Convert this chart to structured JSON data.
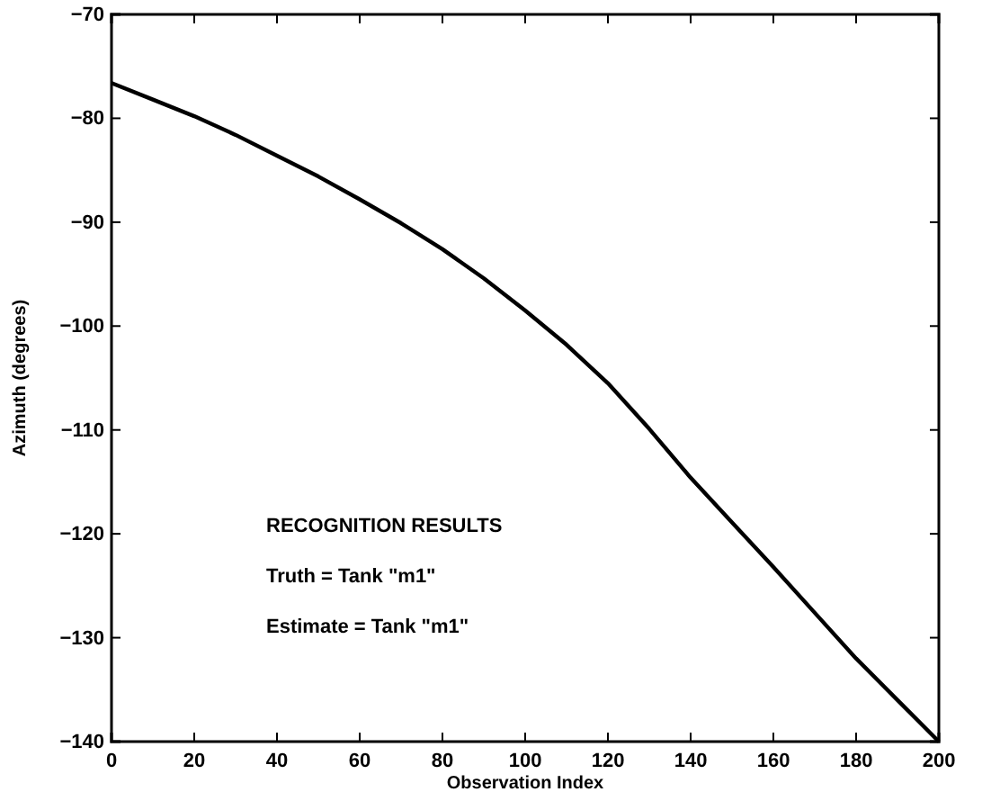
{
  "chart_data": {
    "type": "line",
    "xlabel": "Observation Index",
    "ylabel": "Azimuth (degrees)",
    "x": [
      0,
      10,
      20,
      30,
      40,
      50,
      60,
      70,
      80,
      90,
      100,
      110,
      120,
      130,
      140,
      150,
      160,
      170,
      180,
      190,
      200
    ],
    "series": [
      {
        "color": "#000000",
        "values": [
          -76.6,
          -78.2,
          -79.8,
          -81.6,
          -83.6,
          -85.6,
          -87.8,
          -90.1,
          -92.6,
          -95.4,
          -98.5,
          -101.8,
          -105.5,
          -109.9,
          -114.6,
          -118.9,
          -123.2,
          -127.6,
          -132,
          -136,
          -140
        ]
      }
    ],
    "xlim": [
      0,
      200
    ],
    "xticks": [
      0,
      20,
      40,
      60,
      80,
      100,
      120,
      140,
      160,
      180,
      200
    ],
    "ylim": [
      -140,
      -70
    ],
    "yticks": [
      -140,
      -130,
      -120,
      -110,
      -100,
      -90,
      -80,
      -70
    ],
    "annotations": [
      "RECOGNITION RESULTS",
      "Truth = Tank \"m1\"",
      "Estimate = Tank \"m1\""
    ],
    "grid": false,
    "marker": "none",
    "line_style": "solid"
  }
}
